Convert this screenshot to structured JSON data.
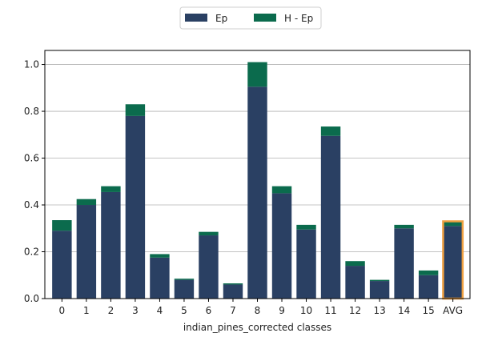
{
  "chart_data": {
    "type": "bar",
    "stacked": true,
    "categories": [
      "0",
      "1",
      "2",
      "3",
      "4",
      "5",
      "6",
      "7",
      "8",
      "9",
      "10",
      "11",
      "12",
      "13",
      "14",
      "15",
      "AVG"
    ],
    "series": [
      {
        "name": "Ep",
        "color": "#2a4063",
        "values": [
          0.29,
          0.4,
          0.455,
          0.78,
          0.175,
          0.08,
          0.27,
          0.06,
          0.905,
          0.45,
          0.295,
          0.695,
          0.14,
          0.075,
          0.3,
          0.1,
          0.31
        ]
      },
      {
        "name": "H - Ep",
        "color": "#0b6b4d",
        "values": [
          0.045,
          0.025,
          0.025,
          0.05,
          0.015,
          0.005,
          0.015,
          0.005,
          0.105,
          0.03,
          0.02,
          0.04,
          0.02,
          0.005,
          0.015,
          0.02,
          0.02
        ]
      }
    ],
    "highlight": {
      "category": "AVG",
      "color": "#f0a040"
    },
    "xlabel": "indian_pines_corrected classes",
    "ylabel": "",
    "ylim": [
      0,
      1.06
    ],
    "yticks": [
      0.0,
      0.2,
      0.4,
      0.6,
      0.8,
      1.0
    ],
    "ytick_labels": [
      "0.0",
      "0.2",
      "0.4",
      "0.6",
      "0.8",
      "1.0"
    ],
    "grid": "y",
    "legend": "top-center"
  }
}
